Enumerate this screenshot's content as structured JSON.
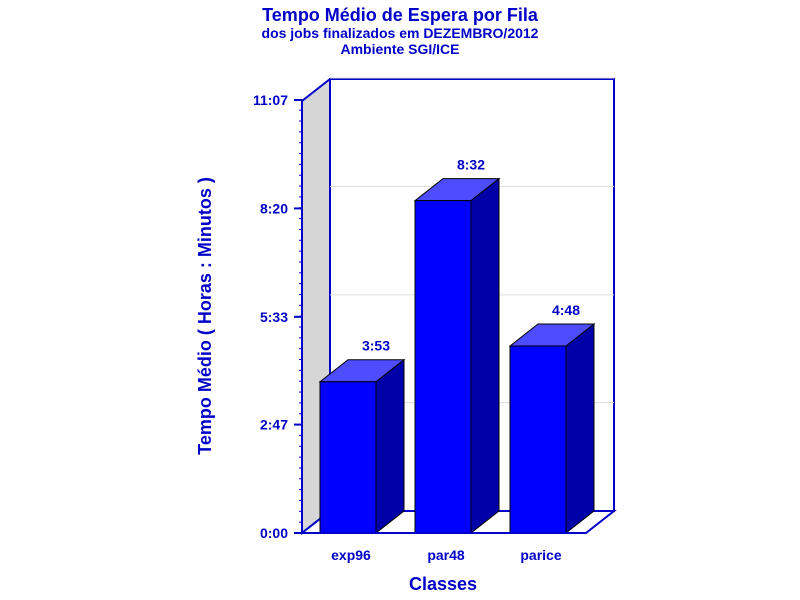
{
  "chart_data": {
    "type": "bar",
    "title": "Tempo Médio de Espera por Fila",
    "subtitle": [
      "dos jobs finalizados em DEZEMBRO/2012",
      "Ambiente SGI/ICE"
    ],
    "xlabel": "Classes",
    "ylabel": "Tempo Médio ( Horas : Minutos )",
    "categories": [
      "exp96",
      "par48",
      "parice"
    ],
    "values": [
      233,
      512,
      288
    ],
    "data_labels": [
      "3:53",
      "8:32",
      "4:48"
    ],
    "yticks": [
      0,
      167,
      333,
      500,
      667
    ],
    "ytick_labels": [
      "0:00",
      "2:47",
      "5:33",
      "8:20",
      "11:07"
    ],
    "ylim": [
      0,
      667
    ],
    "grid": true,
    "colors": {
      "bar_front": "#0000ff",
      "bar_top": "#4d4dff",
      "bar_side": "#0000a8",
      "axis": "#0000c8",
      "back_wall": "#d6d6d6",
      "grid": "#dcdcdc"
    }
  }
}
